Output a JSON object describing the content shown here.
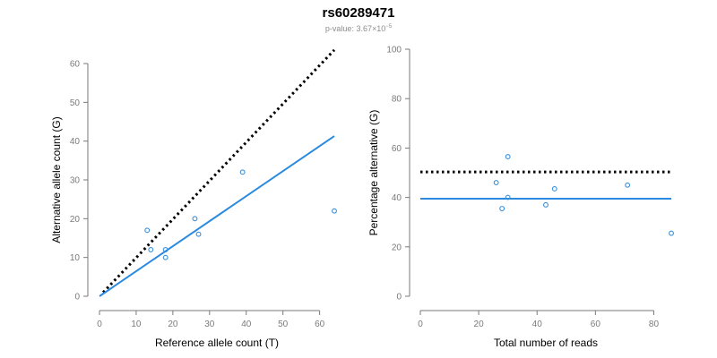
{
  "header": {
    "title": "rs60289471",
    "subtitle_prefix": "p-value: 3.67×10",
    "subtitle_exponent": "−5"
  },
  "colors": {
    "point": "#3a8fd8",
    "fit_line": "#2a8ae0",
    "reference_line": "#000000",
    "axis": "#7a7a7a"
  },
  "chart_data": [
    {
      "type": "scatter",
      "xlabel": "Reference allele count (T)",
      "ylabel": "Alternative allele count (G)",
      "xlim": [
        0,
        64
      ],
      "ylim": [
        0,
        60
      ],
      "xticks": [
        0,
        10,
        20,
        30,
        40,
        50,
        60
      ],
      "yticks": [
        0,
        10,
        20,
        30,
        40,
        50,
        60
      ],
      "points": [
        {
          "x": 13,
          "y": 17
        },
        {
          "x": 14,
          "y": 12
        },
        {
          "x": 18,
          "y": 12
        },
        {
          "x": 18,
          "y": 10
        },
        {
          "x": 26,
          "y": 20
        },
        {
          "x": 27,
          "y": 16
        },
        {
          "x": 39,
          "y": 32
        },
        {
          "x": 64,
          "y": 22
        }
      ],
      "fit_line": {
        "x": [
          0,
          64
        ],
        "y": [
          0,
          41.3
        ]
      },
      "reference_line": {
        "x": [
          1,
          64
        ],
        "y": [
          1,
          63.5
        ]
      },
      "grid": false
    },
    {
      "type": "scatter",
      "xlabel": "Total number of reads",
      "ylabel": "Percentage alternative (G)",
      "xlim": [
        0,
        86
      ],
      "ylim": [
        0,
        100
      ],
      "xticks": [
        0,
        20,
        40,
        60,
        80
      ],
      "yticks": [
        0,
        20,
        40,
        60,
        80,
        100
      ],
      "points": [
        {
          "x": 26,
          "y": 46
        },
        {
          "x": 28,
          "y": 35.5
        },
        {
          "x": 30,
          "y": 56.5
        },
        {
          "x": 30,
          "y": 40
        },
        {
          "x": 43,
          "y": 37
        },
        {
          "x": 46,
          "y": 43.5
        },
        {
          "x": 71,
          "y": 45
        },
        {
          "x": 86,
          "y": 25.5
        }
      ],
      "fit_line": {
        "x": [
          0,
          86
        ],
        "y": [
          39.5,
          39.5
        ]
      },
      "reference_line": {
        "x": [
          0,
          86
        ],
        "y": [
          50.3,
          50.3
        ]
      },
      "grid": false
    }
  ]
}
